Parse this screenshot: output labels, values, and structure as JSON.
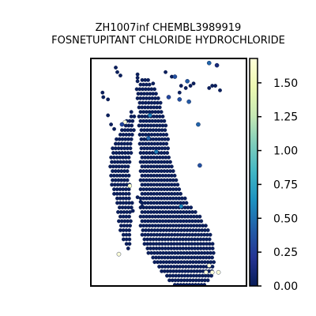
{
  "chart_data": {
    "type": "scatter",
    "title_line1": "ZH1007inf CHEMBL3989919",
    "title_line2": "FOSNETUPITANT CHLORIDE HYDROCHLORIDE",
    "xlabel": "",
    "ylabel": "",
    "axes_ticks_visible": false,
    "colormap": "YlGnBu_r",
    "colormap_stops": [
      "#081d58",
      "#253494",
      "#225ea8",
      "#1d91c0",
      "#41b6c4",
      "#7fcdbb",
      "#c7e9b4",
      "#edf8b1",
      "#ffffd9"
    ],
    "colorbar": {
      "vmin": 0.0,
      "vmax": 1.68,
      "ticks": [
        0.0,
        0.25,
        0.5,
        0.75,
        1.0,
        1.25,
        1.5
      ],
      "tick_labels": [
        "0.00",
        "0.25",
        "0.50",
        "0.75",
        "1.00",
        "1.25",
        "1.50"
      ]
    },
    "xlim": [
      0,
      100
    ],
    "ylim": [
      0,
      100
    ],
    "spot_spacing": 1.9,
    "base_value": 0.02,
    "regions": [
      {
        "name": "left-strip",
        "rows": [
          [
            23.5,
            26,
            27.5
          ],
          [
            25.5,
            25,
            28.5
          ],
          [
            27.5,
            23,
            28
          ],
          [
            29.5,
            21.5,
            28
          ],
          [
            31.5,
            20,
            28
          ],
          [
            33.5,
            18,
            27.5
          ],
          [
            35.5,
            16.5,
            27.5
          ],
          [
            37.5,
            15,
            27
          ],
          [
            39.5,
            14,
            27
          ],
          [
            41.5,
            13.5,
            26.5
          ],
          [
            43.5,
            13,
            26
          ],
          [
            45.5,
            12.5,
            25.5
          ],
          [
            47.5,
            12.5,
            25.5
          ],
          [
            49.5,
            13,
            25
          ],
          [
            51.5,
            13,
            25
          ],
          [
            53.5,
            13,
            25
          ],
          [
            55.5,
            13.5,
            25
          ],
          [
            57.5,
            14,
            25.5
          ],
          [
            59.5,
            15,
            25.5
          ],
          [
            61.5,
            16,
            26
          ],
          [
            63.5,
            17,
            26.5
          ],
          [
            65.5,
            17.5,
            26.5
          ],
          [
            67.5,
            17.5,
            26.5
          ],
          [
            69.5,
            18,
            26.5
          ],
          [
            71.5,
            18,
            26.5
          ],
          [
            73.5,
            18.5,
            26.5
          ],
          [
            75.5,
            19,
            26
          ],
          [
            77.5,
            20,
            26
          ],
          [
            79.5,
            21,
            25.5
          ],
          [
            81.5,
            22,
            25.5
          ],
          [
            83.5,
            24,
            25
          ]
        ]
      },
      {
        "name": "right-lobe",
        "rows": [
          [
            9.5,
            33,
            37
          ],
          [
            11.5,
            31,
            39
          ],
          [
            13.5,
            29.5,
            41
          ],
          [
            15.5,
            29.5,
            43
          ],
          [
            17.5,
            30,
            44
          ],
          [
            19.5,
            30.5,
            45
          ],
          [
            21.5,
            31,
            46
          ],
          [
            23.5,
            31,
            47
          ],
          [
            25.5,
            31,
            48
          ],
          [
            27.5,
            31,
            49
          ],
          [
            29.5,
            31,
            49
          ],
          [
            31.5,
            31.5,
            49.5
          ],
          [
            33.5,
            31.5,
            50
          ],
          [
            35.5,
            31.5,
            50
          ],
          [
            37.5,
            31.5,
            50
          ],
          [
            39.5,
            31.5,
            50
          ],
          [
            41.5,
            32,
            50.5
          ],
          [
            43.5,
            32,
            51
          ],
          [
            45.5,
            32,
            51.5
          ],
          [
            47.5,
            32,
            52
          ],
          [
            49.5,
            32,
            53
          ],
          [
            51.5,
            32,
            54
          ],
          [
            53.5,
            32,
            55
          ],
          [
            55.5,
            32,
            56
          ],
          [
            57.5,
            32,
            57.5
          ],
          [
            59.5,
            32,
            59
          ],
          [
            61.5,
            32,
            61
          ],
          [
            63.5,
            32,
            63
          ],
          [
            65.5,
            32,
            66
          ],
          [
            67.5,
            32,
            68
          ],
          [
            69.5,
            32,
            70
          ],
          [
            71.5,
            32,
            72
          ],
          [
            73.5,
            32,
            74
          ],
          [
            75.5,
            32.5,
            75.5
          ],
          [
            77.5,
            33,
            77
          ],
          [
            79.5,
            33.5,
            78
          ],
          [
            81.5,
            34.5,
            79
          ],
          [
            83.5,
            35.5,
            79
          ],
          [
            85.5,
            37,
            79
          ],
          [
            87.5,
            39,
            79
          ],
          [
            89.5,
            41,
            79
          ],
          [
            91.5,
            43,
            78.5
          ],
          [
            93.5,
            45.5,
            78
          ],
          [
            95.5,
            48,
            77.5
          ],
          [
            97.5,
            50.5,
            76
          ],
          [
            99.5,
            53,
            74
          ]
        ]
      }
    ],
    "extra_spots": [
      [
        30,
        7
      ],
      [
        30,
        8.5
      ],
      [
        30,
        10
      ],
      [
        17,
        6
      ],
      [
        19,
        7.5
      ],
      [
        16,
        4
      ],
      [
        7.5,
        15
      ],
      [
        8,
        17
      ],
      [
        11,
        18
      ],
      [
        11,
        25
      ],
      [
        13,
        29
      ],
      [
        15,
        31
      ],
      [
        40,
        11
      ],
      [
        48,
        6
      ],
      [
        52,
        8
      ],
      [
        58,
        12
      ],
      [
        61,
        13
      ],
      [
        57,
        15
      ],
      [
        66,
        11
      ],
      [
        64,
        12
      ],
      [
        78,
        12
      ],
      [
        76,
        13
      ],
      [
        83,
        14
      ],
      [
        80,
        12
      ],
      [
        30,
        61
      ],
      [
        32,
        63
      ],
      [
        33,
        65
      ],
      [
        27,
        67
      ]
    ],
    "hot_spots": [
      {
        "x": 54,
        "y": 8,
        "value": 0.35
      },
      {
        "x": 50,
        "y": 17,
        "value": 0.3
      },
      {
        "x": 62,
        "y": 10,
        "value": 0.4
      },
      {
        "x": 76,
        "y": 2,
        "value": 0.45
      },
      {
        "x": 81,
        "y": 3,
        "value": 0.12
      },
      {
        "x": 38,
        "y": 25,
        "value": 0.55
      },
      {
        "x": 37,
        "y": 35,
        "value": 0.45
      },
      {
        "x": 42,
        "y": 41,
        "value": 0.55
      },
      {
        "x": 58,
        "y": 65,
        "value": 0.6
      },
      {
        "x": 69,
        "y": 29,
        "value": 0.45
      },
      {
        "x": 63,
        "y": 19,
        "value": 0.4
      },
      {
        "x": 57,
        "y": 18,
        "value": 0.35
      },
      {
        "x": 70,
        "y": 47,
        "value": 0.35
      },
      {
        "x": 25,
        "y": 56,
        "value": 1.6
      },
      {
        "x": 22,
        "y": 28,
        "value": 1.68
      },
      {
        "x": 20,
        "y": 29,
        "value": 0.3
      },
      {
        "x": 18,
        "y": 86,
        "value": 1.68
      },
      {
        "x": 76,
        "y": 91,
        "value": 1.68
      },
      {
        "x": 74,
        "y": 94,
        "value": 1.68
      },
      {
        "x": 78,
        "y": 94,
        "value": 1.68
      },
      {
        "x": 82,
        "y": 94,
        "value": 1.68
      }
    ]
  }
}
